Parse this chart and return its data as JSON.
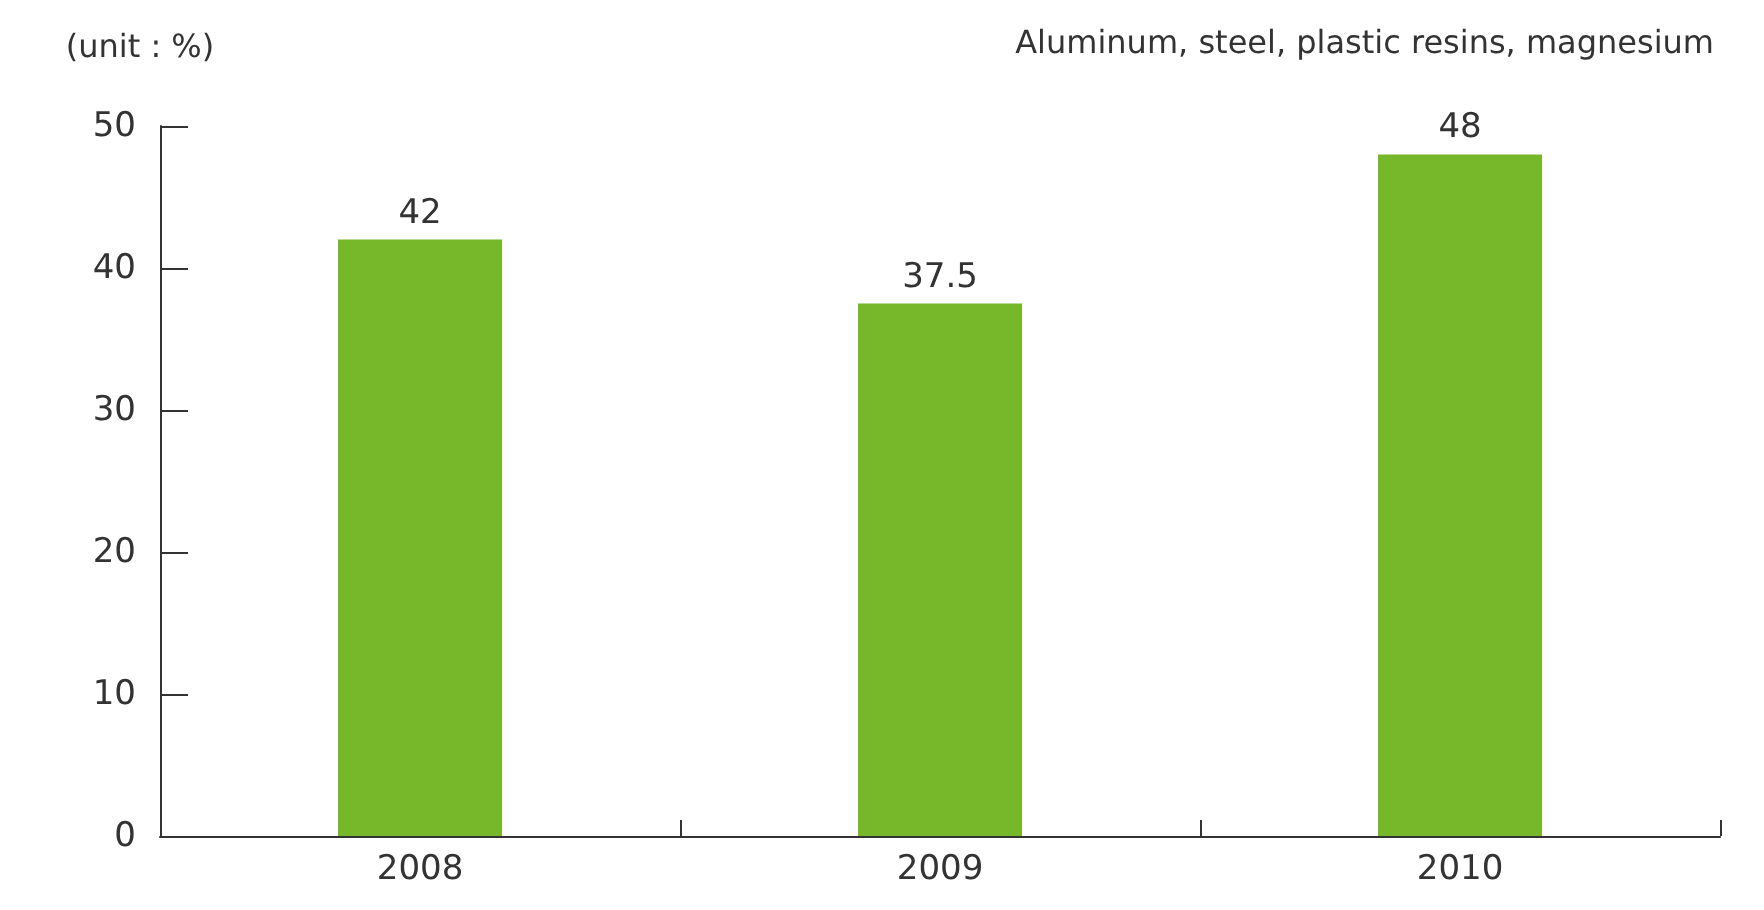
{
  "chart_data": {
    "type": "bar",
    "title": "Aluminum, steel, plastic resins, magnesium",
    "ylabel": "(unit : %)",
    "categories": [
      "2008",
      "2009",
      "2010"
    ],
    "values": [
      42,
      37.5,
      48
    ],
    "color": "#76b82a",
    "ylim": [
      0,
      50
    ],
    "yticks": [
      0,
      10,
      20,
      30,
      40,
      50
    ],
    "grid": false,
    "data_labels": true
  }
}
